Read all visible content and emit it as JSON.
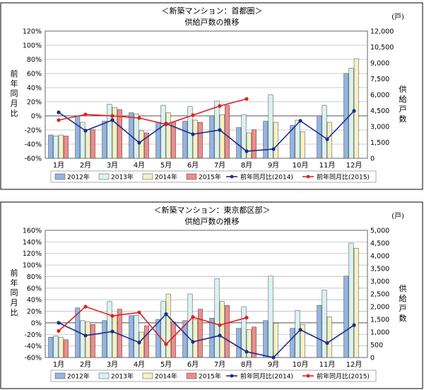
{
  "chart_data": [
    {
      "type": "bar",
      "title": "＜新築マンション：首都圏＞",
      "subtitle": "供給戸数の推移",
      "ylabel_left": "前年同月比",
      "ylabel_right": "供給戸数",
      "unit_right": "(戸)",
      "categories": [
        "1月",
        "2月",
        "3月",
        "4月",
        "5月",
        "6月",
        "7月",
        "8月",
        "9月",
        "10月",
        "11月",
        "12月"
      ],
      "left_ticks": [
        "-60%",
        "-40%",
        "-20%",
        "0%",
        "20%",
        "40%",
        "60%",
        "80%",
        "100%",
        "120%"
      ],
      "right_ticks": [
        "0",
        "1,500",
        "3,000",
        "4,500",
        "6,000",
        "7,500",
        "9,000",
        "10,500",
        "12,000"
      ],
      "y_left": [
        -60,
        120
      ],
      "y_right": [
        0,
        12000
      ],
      "bar_series": [
        {
          "name": "2012年",
          "color": "#93b5e1",
          "values": [
            2200,
            4000,
            3500,
            4300,
            3400,
            3500,
            4000,
            2900,
            3500,
            3100,
            4000,
            8000
          ]
        },
        {
          "name": "2013年",
          "color": "#d9f2f2",
          "values": [
            2100,
            3400,
            5100,
            4200,
            5000,
            4900,
            5400,
            4100,
            6000,
            3600,
            5000,
            8500
          ]
        },
        {
          "name": "2014年",
          "color": "#f4f2c4",
          "values": [
            2200,
            2700,
            4800,
            2600,
            4300,
            3600,
            4100,
            2400,
            3400,
            2500,
            3400,
            9400
          ]
        },
        {
          "name": "2015年",
          "color": "#ee8c8c",
          "values": [
            2100,
            2700,
            4600,
            2400,
            3400,
            3400,
            5000,
            2700
          ]
        }
      ],
      "line_series": [
        {
          "name": "前年同月比(2014)",
          "color": "#1f2a8c",
          "values": [
            5,
            -21,
            -6,
            -38,
            -11,
            -26,
            -20,
            -50,
            -47,
            -7,
            -33,
            7
          ]
        },
        {
          "name": "前年同月比(2015)",
          "color": "#e02020",
          "values": [
            -6,
            2,
            0,
            -3,
            -12,
            1,
            14,
            24
          ]
        }
      ]
    },
    {
      "type": "bar",
      "title": "＜新築マンション：東京都区部＞",
      "subtitle": "供給戸数の推移",
      "ylabel_left": "前年同月比",
      "ylabel_right": "供給戸数",
      "unit_right": "(戸)",
      "categories": [
        "1月",
        "2月",
        "3月",
        "4月",
        "5月",
        "6月",
        "7月",
        "8月",
        "9月",
        "10月",
        "11月",
        "12月"
      ],
      "left_ticks": [
        "-60%",
        "-40%",
        "-20%",
        "0%",
        "20%",
        "40%",
        "60%",
        "80%",
        "100%",
        "120%",
        "140%",
        "160%"
      ],
      "right_ticks": [
        "0",
        "500",
        "1,000",
        "1,500",
        "2,000",
        "2,500",
        "3,000",
        "3,500",
        "4,000",
        "4,500",
        "5,000"
      ],
      "y_left": [
        -60,
        160
      ],
      "y_right": [
        0,
        5000
      ],
      "bar_series": [
        {
          "name": "2012年",
          "color": "#93b5e1",
          "values": [
            800,
            1950,
            1450,
            1650,
            1500,
            1450,
            1550,
            1150,
            1450,
            1150,
            2050,
            3200
          ]
        },
        {
          "name": "2013年",
          "color": "#d9f2f2",
          "values": [
            850,
            1450,
            2200,
            1650,
            2200,
            2500,
            3100,
            2000,
            3200,
            1850,
            2650,
            4500
          ]
        },
        {
          "name": "2014年",
          "color": "#f4f2c4",
          "values": [
            800,
            1400,
            1650,
            1000,
            2500,
            1500,
            2200,
            1100,
            1350,
            1300,
            1600,
            4300
          ]
        },
        {
          "name": "2015年",
          "color": "#ee8c8c",
          "values": [
            700,
            1300,
            1900,
            1250,
            1400,
            1900,
            2050,
            1200
          ]
        }
      ],
      "line_series": [
        {
          "name": "前年同月比(2014)",
          "color": "#1f2a8c",
          "values": [
            0,
            -22,
            -15,
            -34,
            15,
            -33,
            -22,
            -50,
            -60,
            -12,
            -35,
            -4
          ]
        },
        {
          "name": "前年同月比(2015)",
          "color": "#e02020",
          "values": [
            -14,
            28,
            12,
            18,
            -37,
            10,
            -4,
            9
          ]
        }
      ]
    }
  ]
}
